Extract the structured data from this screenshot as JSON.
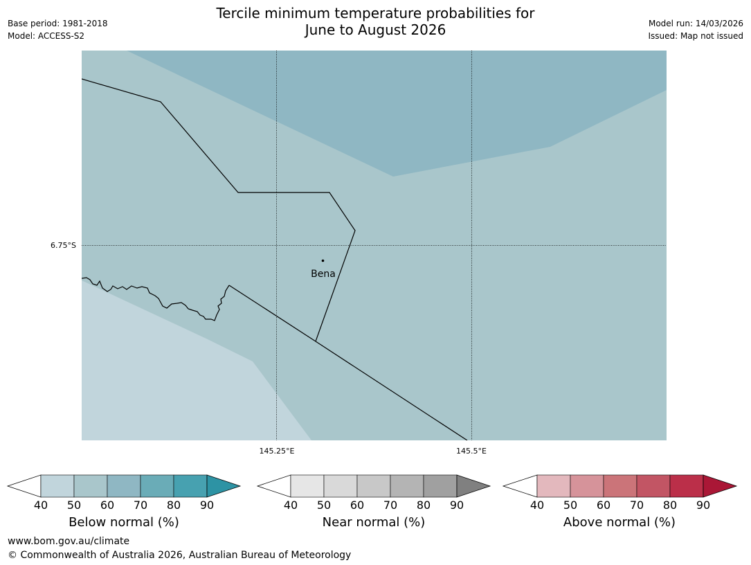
{
  "title_line1": "Tercile minimum temperature probabilities for",
  "title_line2": "June to August 2026",
  "base_period": "Base period: 1981-2018",
  "model": "Model: ACCESS-S2",
  "model_run": "Model run: 14/03/2026",
  "issued": "Issued: Map not issued",
  "map": {
    "lat_label": "6.75°S",
    "lon_labels": [
      "145.25°E",
      "145.5°E"
    ],
    "place": "Bena",
    "colors": {
      "below_40_50": "#a9c6cb",
      "below_60_70": "#8fb7c3",
      "below_lt40": "#c1d5dc"
    }
  },
  "colorbars": [
    {
      "label": "Below normal (%)",
      "ticks": [
        "40",
        "50",
        "60",
        "70",
        "80",
        "90"
      ],
      "colors": [
        "#c1d5dc",
        "#a9c6cb",
        "#8fb7c3",
        "#6aacb7",
        "#47a1b0"
      ],
      "extend_color": "#2d93a4"
    },
    {
      "label": "Near normal (%)",
      "ticks": [
        "40",
        "50",
        "60",
        "70",
        "80",
        "90"
      ],
      "colors": [
        "#e6e6e6",
        "#d9d9d9",
        "#c8c8c8",
        "#b4b4b4",
        "#a0a0a0"
      ],
      "extend_color": "#808080"
    },
    {
      "label": "Above normal (%)",
      "ticks": [
        "40",
        "50",
        "60",
        "70",
        "80",
        "90"
      ],
      "colors": [
        "#e3b8bd",
        "#d6939a",
        "#cb7479",
        "#c25564",
        "#bb2f49"
      ],
      "extend_color": "#aa1736"
    }
  ],
  "footer_url": "www.bom.gov.au/climate",
  "footer_copyright": "© Commonwealth of Australia 2026, Australian Bureau of Meteorology"
}
